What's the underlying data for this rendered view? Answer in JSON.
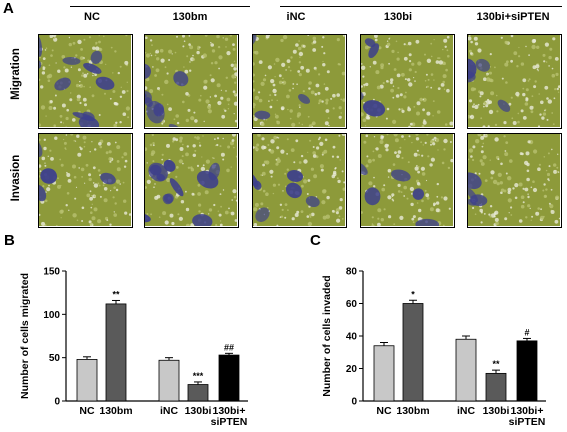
{
  "panel_a": {
    "letter": "A",
    "column_labels": [
      "NC",
      "130bm",
      "iNC",
      "130bi",
      "130bi+siPTEN"
    ],
    "row_labels": [
      "Migration",
      "Invasion"
    ],
    "colors": {
      "cell_stain": "#3d3f8c",
      "membrane_green": "#8d9a3a",
      "pore_white": "#e8ead8"
    }
  },
  "panel_b": {
    "letter": "B"
  },
  "panel_c": {
    "letter": "C"
  },
  "chart_data": [
    {
      "type": "bar",
      "panel": "B",
      "ylabel": "Number of cells migrated",
      "ylim": [
        0,
        150
      ],
      "yticks": [
        "0",
        "50",
        "100",
        "150"
      ],
      "categories": [
        "NC",
        "130bm",
        "iNC",
        "130bi",
        "130bi+\nsiPTEN"
      ],
      "category_labels": [
        [
          "NC"
        ],
        [
          "130bm"
        ],
        [
          "iNC"
        ],
        [
          "130bi"
        ],
        [
          "130bi+",
          "siPTEN"
        ]
      ],
      "values": [
        48,
        112,
        47,
        19,
        53
      ],
      "errors": [
        3,
        4,
        3,
        3,
        2
      ],
      "significance": [
        "",
        "**",
        "",
        "***",
        "##"
      ],
      "bar_colors": [
        "#c8c8c8",
        "#5a5a5a",
        "#c8c8c8",
        "#5a5a5a",
        "#000000"
      ]
    },
    {
      "type": "bar",
      "panel": "C",
      "ylabel": "Number of cells invaded",
      "ylim": [
        0,
        80
      ],
      "yticks": [
        "0",
        "20",
        "40",
        "60",
        "80"
      ],
      "categories": [
        "NC",
        "130bm",
        "iNC",
        "130bi",
        "130bi+\nsiPTEN"
      ],
      "category_labels": [
        [
          "NC"
        ],
        [
          "130bm"
        ],
        [
          "iNC"
        ],
        [
          "130bi"
        ],
        [
          "130bi+",
          "siPTEN"
        ]
      ],
      "values": [
        34,
        60,
        38,
        17,
        37
      ],
      "errors": [
        2,
        2,
        2,
        2,
        1.5
      ],
      "significance": [
        "",
        "*",
        "",
        "**",
        "#"
      ],
      "bar_colors": [
        "#c8c8c8",
        "#5a5a5a",
        "#c8c8c8",
        "#5a5a5a",
        "#000000"
      ]
    }
  ]
}
